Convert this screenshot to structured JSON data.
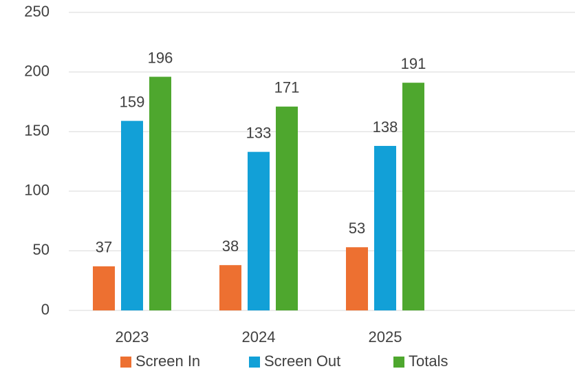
{
  "chart_data": {
    "type": "bar",
    "categories": [
      "2023",
      "2024",
      "2025",
      null
    ],
    "series": [
      {
        "name": "Screen In",
        "color": "#ed7031",
        "values": [
          37,
          38,
          53,
          null
        ]
      },
      {
        "name": "Screen Out",
        "color": "#12a0d7",
        "values": [
          159,
          133,
          138,
          null
        ]
      },
      {
        "name": "Totals",
        "color": "#4ea72e",
        "values": [
          196,
          171,
          191,
          null
        ]
      }
    ],
    "ylim": [
      0,
      250
    ],
    "yticks": [
      0,
      50,
      100,
      150,
      200,
      250
    ],
    "grid": true,
    "legend": "bottom"
  }
}
